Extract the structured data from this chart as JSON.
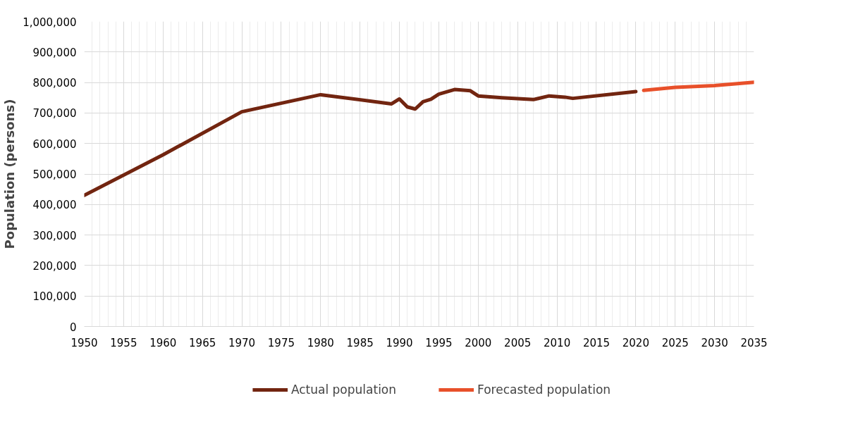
{
  "chart_data": {
    "type": "line",
    "ylabel": "Population (persons)",
    "xlim": [
      1950,
      2035
    ],
    "xticks": [
      1950,
      1955,
      1960,
      1965,
      1970,
      1975,
      1980,
      1985,
      1990,
      1995,
      2000,
      2005,
      2010,
      2015,
      2020,
      2025,
      2030,
      2035
    ],
    "ylim": [
      0,
      1000000
    ],
    "yticks": [
      {
        "value": 0,
        "label": "0"
      },
      {
        "value": 100000,
        "label": "100,000"
      },
      {
        "value": 200000,
        "label": "200,000"
      },
      {
        "value": 300000,
        "label": "300,000"
      },
      {
        "value": 400000,
        "label": "400,000"
      },
      {
        "value": 500000,
        "label": "500,000"
      },
      {
        "value": 600000,
        "label": "600,000"
      },
      {
        "value": 700000,
        "label": "700,000"
      },
      {
        "value": 800000,
        "label": "800,000"
      },
      {
        "value": 900000,
        "label": "900,000"
      },
      {
        "value": 1000000,
        "label": "1,000,000"
      }
    ],
    "grid": true,
    "legend": "bottom",
    "marker": "none",
    "line_style": "solid",
    "series": [
      {
        "name": "Actual population",
        "color": "#722510",
        "x": [
          1950,
          1960,
          1970,
          1980,
          1989,
          1990,
          1991,
          1992,
          1993,
          1994,
          1995,
          1997,
          1999,
          2000,
          2003,
          2007,
          2009,
          2011,
          2012,
          2020
        ],
        "values": [
          430000,
          563000,
          704000,
          760000,
          730000,
          746000,
          720000,
          713000,
          737000,
          745000,
          762000,
          777000,
          773000,
          756000,
          750000,
          744000,
          756000,
          752000,
          748000,
          770000
        ]
      },
      {
        "name": "Forecasted population",
        "color": "#e8502a",
        "x": [
          2021,
          2025,
          2030,
          2035
        ],
        "values": [
          774000,
          784000,
          790000,
          801000
        ]
      }
    ]
  }
}
